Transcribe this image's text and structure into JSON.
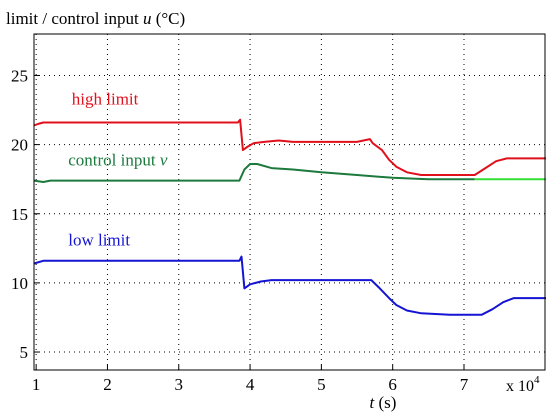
{
  "chart_data": {
    "type": "line",
    "title": "limit / control input u (°C)",
    "title_parts": {
      "prefix": "limit / control input ",
      "var": "u",
      "suffix": " (°C)"
    },
    "xlabel": "t (s)",
    "xlabel_parts": {
      "var": "t",
      "suffix": " (s)"
    },
    "x_multiplier": "x 10",
    "x_multiplier_exp": "4",
    "xlim": [
      0.97,
      8.15
    ],
    "ylim": [
      3.7,
      28.0
    ],
    "xticks": [
      1,
      2,
      3,
      4,
      5,
      6,
      7
    ],
    "yticks": [
      5,
      10,
      15,
      20,
      25
    ],
    "grid": true,
    "grid_style": "dotted",
    "series": [
      {
        "name": "high limit",
        "color": "#e0101c",
        "points": [
          [
            0.97,
            21.4
          ],
          [
            1.03,
            21.5
          ],
          [
            1.1,
            21.6
          ],
          [
            1.4,
            21.6
          ],
          [
            2.0,
            21.6
          ],
          [
            3.0,
            21.6
          ],
          [
            3.83,
            21.6
          ],
          [
            3.86,
            21.8
          ],
          [
            3.9,
            19.6
          ],
          [
            3.95,
            19.8
          ],
          [
            4.05,
            20.1
          ],
          [
            4.2,
            20.2
          ],
          [
            4.4,
            20.3
          ],
          [
            4.6,
            20.2
          ],
          [
            5.0,
            20.2
          ],
          [
            5.5,
            20.2
          ],
          [
            5.68,
            20.4
          ],
          [
            5.72,
            20.1
          ],
          [
            5.85,
            19.6
          ],
          [
            5.95,
            18.9
          ],
          [
            6.05,
            18.4
          ],
          [
            6.2,
            18.0
          ],
          [
            6.4,
            17.8
          ],
          [
            6.8,
            17.8
          ],
          [
            7.15,
            17.8
          ],
          [
            7.3,
            18.3
          ],
          [
            7.45,
            18.8
          ],
          [
            7.6,
            19.0
          ],
          [
            8.15,
            19.0
          ]
        ]
      },
      {
        "name": "control input v",
        "name_parts": {
          "prefix": "control input ",
          "var": "v"
        },
        "color": "#1b7a3c",
        "points": [
          [
            0.97,
            17.4
          ],
          [
            1.1,
            17.3
          ],
          [
            1.2,
            17.4
          ],
          [
            2.0,
            17.4
          ],
          [
            3.0,
            17.4
          ],
          [
            3.85,
            17.4
          ],
          [
            3.92,
            18.2
          ],
          [
            4.0,
            18.6
          ],
          [
            4.1,
            18.6
          ],
          [
            4.3,
            18.3
          ],
          [
            4.6,
            18.2
          ],
          [
            5.0,
            18.0
          ],
          [
            5.5,
            17.8
          ],
          [
            6.0,
            17.6
          ],
          [
            6.5,
            17.5
          ],
          [
            7.15,
            17.5
          ]
        ]
      },
      {
        "name": "",
        "color": "#33dd33",
        "points": [
          [
            7.15,
            17.5
          ],
          [
            8.15,
            17.5
          ]
        ]
      },
      {
        "name": "low limit",
        "color": "#1414d2",
        "points": [
          [
            0.97,
            11.4
          ],
          [
            1.1,
            11.6
          ],
          [
            2.0,
            11.6
          ],
          [
            3.0,
            11.6
          ],
          [
            3.85,
            11.6
          ],
          [
            3.88,
            11.9
          ],
          [
            3.92,
            9.6
          ],
          [
            4.0,
            9.9
          ],
          [
            4.15,
            10.1
          ],
          [
            4.3,
            10.2
          ],
          [
            4.8,
            10.2
          ],
          [
            5.7,
            10.2
          ],
          [
            5.82,
            9.6
          ],
          [
            5.95,
            8.9
          ],
          [
            6.05,
            8.4
          ],
          [
            6.2,
            8.0
          ],
          [
            6.4,
            7.8
          ],
          [
            6.8,
            7.7
          ],
          [
            7.25,
            7.7
          ],
          [
            7.4,
            8.1
          ],
          [
            7.55,
            8.6
          ],
          [
            7.7,
            8.9
          ],
          [
            8.15,
            8.9
          ]
        ]
      }
    ],
    "annotations": [
      {
        "text": "high limit",
        "color": "#e0101c",
        "x": 1.5,
        "y": 22.9
      },
      {
        "text": "control input v",
        "color": "#1b7a3c",
        "x": 1.45,
        "y": 18.5
      },
      {
        "text": "low limit",
        "color": "#1414d2",
        "x": 1.45,
        "y": 12.7
      }
    ]
  }
}
